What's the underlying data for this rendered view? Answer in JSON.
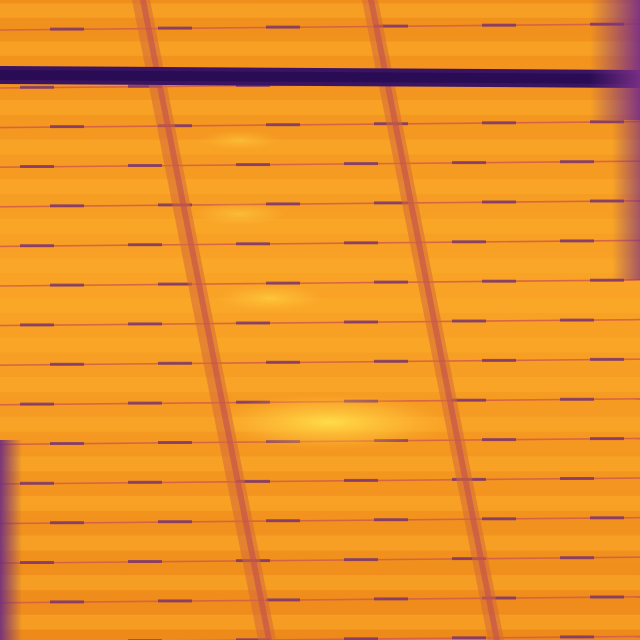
{
  "image": {
    "subject": "thermal-infrared-solar-panel-array",
    "palette": {
      "hot_highlight": "#ffd23a",
      "warm_cell": "#fbab2a",
      "cell_base": "#f59a1e",
      "cell_shade": "#ee8a1a",
      "frame_line": "#d25d4a",
      "cell_gap": "#a53d6a",
      "finger_mark": "#6a2a78",
      "cool_gap": "#3a1463",
      "edge_cool": "#7a2f86"
    }
  }
}
